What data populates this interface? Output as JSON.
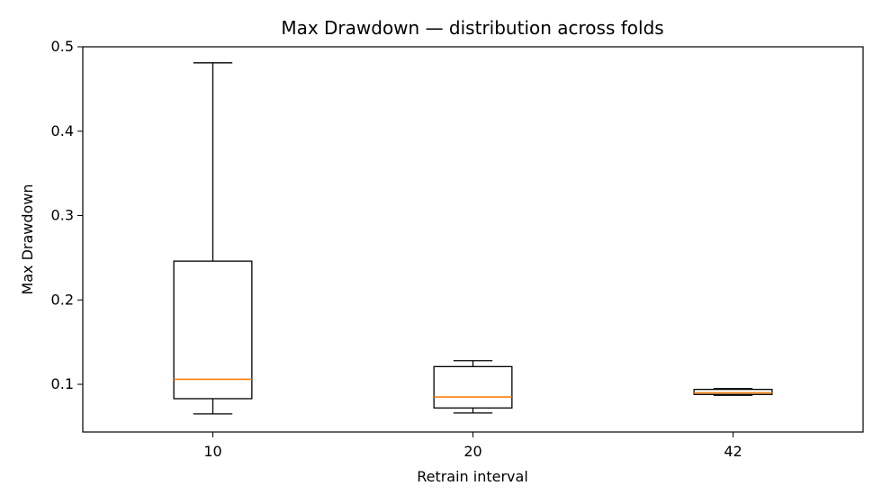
{
  "chart_data": {
    "type": "box",
    "title": "Max Drawdown — distribution across folds",
    "xlabel": "Retrain interval",
    "ylabel": "Max Drawdown",
    "categories": [
      "10",
      "20",
      "42"
    ],
    "boxes": [
      {
        "category": "10",
        "whisker_low": 0.065,
        "q1": 0.083,
        "median": 0.106,
        "q3": 0.246,
        "whisker_high": 0.481
      },
      {
        "category": "20",
        "whisker_low": 0.066,
        "q1": 0.072,
        "median": 0.085,
        "q3": 0.121,
        "whisker_high": 0.128
      },
      {
        "category": "42",
        "whisker_low": 0.087,
        "q1": 0.088,
        "median": 0.09,
        "q3": 0.094,
        "whisker_high": 0.095
      }
    ],
    "yticks": [
      0.1,
      0.2,
      0.3,
      0.4,
      0.5
    ],
    "ytick_labels": [
      "0.1",
      "0.2",
      "0.3",
      "0.4",
      "0.5"
    ],
    "ylim": [
      0.0435,
      0.5
    ],
    "grid": false,
    "colors": {
      "box": "#000000",
      "median": "#ff7f0e",
      "background": "#ffffff"
    }
  }
}
